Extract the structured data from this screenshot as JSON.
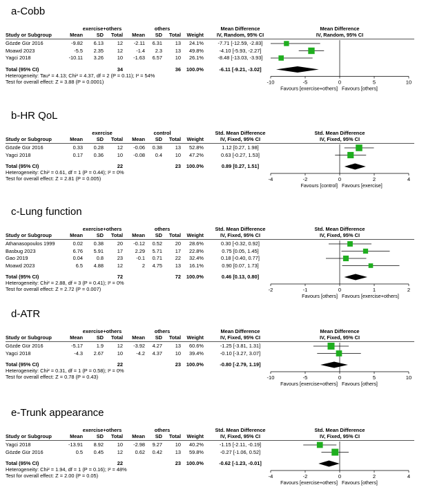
{
  "chart_data": [
    {
      "type": "forest",
      "title": "a-Cobb",
      "group1": "exercise+others",
      "group2": "others",
      "headers": {
        "study": "Study or Subgroup",
        "mean1": "Mean",
        "sd1": "SD",
        "total1": "Total",
        "mean2": "Mean",
        "sd2": "SD",
        "total2": "Total",
        "weight": "Weight",
        "effect_title": "Mean Difference",
        "effect_method": "IV, Random, 95% CI",
        "plot_title": "Mean Difference",
        "plot_method": "IV, Random, 95% CI"
      },
      "studies": [
        {
          "name": "Gözde Gür 2016",
          "mean1": "-9.82",
          "sd1": "6.13",
          "n1": "12",
          "mean2": "-2.11",
          "sd2": "6.31",
          "n2": "13",
          "weight": "24.1%",
          "ci_text": "-7.71 [-12.59, -2.83]",
          "est": -7.71,
          "lo": -12.59,
          "hi": -2.83,
          "w": 24.1
        },
        {
          "name": "Moawd 2023",
          "mean1": "-5.5",
          "sd1": "2.35",
          "n1": "12",
          "mean2": "-1.4",
          "sd2": "2.3",
          "n2": "13",
          "weight": "49.8%",
          "ci_text": "-4.10 [-5.93, -2.27]",
          "est": -4.1,
          "lo": -5.93,
          "hi": -2.27,
          "w": 49.8
        },
        {
          "name": "Yagci 2018",
          "mean1": "-10.11",
          "sd1": "3.26",
          "n1": "10",
          "mean2": "-1.63",
          "sd2": "6.57",
          "n2": "10",
          "weight": "26.1%",
          "ci_text": "-8.48 [-13.03, -3.93]",
          "est": -8.48,
          "lo": -13.03,
          "hi": -3.93,
          "w": 26.1
        }
      ],
      "total": {
        "label": "Total (95% CI)",
        "n1": "34",
        "n2": "36",
        "weight": "100.0%",
        "ci_text": "-6.11 [-9.21, -3.02]",
        "est": -6.11,
        "lo": -9.21,
        "hi": -3.02
      },
      "heterogeneity": "Heterogeneity: Tau² = 4.13; Chi² = 4.37, df = 2 (P = 0.11); I² = 54%",
      "overall": "Test for overall effect: Z = 3.88 (P = 0.0001)",
      "axis": {
        "min": -10,
        "max": 10,
        "ticks": [
          -10,
          -5,
          0,
          5,
          10
        ],
        "tick_labels": [
          "-10",
          "-5",
          "0",
          "5",
          "10"
        ]
      },
      "favours_left": "Favours [exercise+others]",
      "favours_right": "Favours [others]"
    },
    {
      "type": "forest",
      "title": "b-HR QoL",
      "group1": "exercise",
      "group2": "control",
      "headers": {
        "study": "Study or Subgroup",
        "mean1": "Mean",
        "sd1": "SD",
        "total1": "Total",
        "mean2": "Mean",
        "sd2": "SD",
        "total2": "Total",
        "weight": "Weight",
        "effect_title": "Std. Mean Difference",
        "effect_method": "IV, Fixed, 95% CI",
        "plot_title": "Std. Mean Difference",
        "plot_method": "IV, Fixed, 95% CI"
      },
      "studies": [
        {
          "name": "Gözde Gür 2016",
          "mean1": "0.33",
          "sd1": "0.28",
          "n1": "12",
          "mean2": "-0.06",
          "sd2": "0.38",
          "n2": "13",
          "weight": "52.8%",
          "ci_text": "1.12 [0.27, 1.98]",
          "est": 1.12,
          "lo": 0.27,
          "hi": 1.98,
          "w": 52.8
        },
        {
          "name": "Yagci 2018",
          "mean1": "0.17",
          "sd1": "0.36",
          "n1": "10",
          "mean2": "-0.08",
          "sd2": "0.4",
          "n2": "10",
          "weight": "47.2%",
          "ci_text": "0.63 [-0.27, 1.53]",
          "est": 0.63,
          "lo": -0.27,
          "hi": 1.53,
          "w": 47.2
        }
      ],
      "total": {
        "label": "Total (95% CI)",
        "n1": "22",
        "n2": "23",
        "weight": "100.0%",
        "ci_text": "0.89 [0.27, 1.51]",
        "est": 0.89,
        "lo": 0.27,
        "hi": 1.51
      },
      "heterogeneity": "Heterogeneity: Chi² = 0.61, df = 1 (P = 0.44); I² = 0%",
      "overall": "Test for overall effect: Z = 2.81 (P = 0.005)",
      "axis": {
        "min": -4,
        "max": 4,
        "ticks": [
          -4,
          -2,
          0,
          2,
          4
        ],
        "tick_labels": [
          "-4",
          "-2",
          "0",
          "2",
          "4"
        ]
      },
      "favours_left": "Favours [control]",
      "favours_right": "Favours [exercise]"
    },
    {
      "type": "forest",
      "title": "c-Lung function",
      "group1": "exercise+others",
      "group2": "others",
      "headers": {
        "study": "Study or Subgroup",
        "mean1": "Mean",
        "sd1": "SD",
        "total1": "Total",
        "mean2": "Mean",
        "sd2": "SD",
        "total2": "Total",
        "weight": "Weight",
        "effect_title": "Std. Mean Difference",
        "effect_method": "IV, Fixed, 95% CI",
        "plot_title": "Std. Mean Difference",
        "plot_method": "IV, Fixed, 95% CI"
      },
      "studies": [
        {
          "name": "Athanasopoulos 1999",
          "mean1": "0.02",
          "sd1": "0.38",
          "n1": "20",
          "mean2": "-0.12",
          "sd2": "0.52",
          "n2": "20",
          "weight": "28.6%",
          "ci_text": "0.30 [-0.32, 0.92]",
          "est": 0.3,
          "lo": -0.32,
          "hi": 0.92,
          "w": 28.6
        },
        {
          "name": "Basbug 2023",
          "mean1": "6.76",
          "sd1": "5.91",
          "n1": "17",
          "mean2": "2.29",
          "sd2": "5.71",
          "n2": "17",
          "weight": "22.8%",
          "ci_text": "0.75 [0.05, 1.45]",
          "est": 0.75,
          "lo": 0.05,
          "hi": 1.45,
          "w": 22.8
        },
        {
          "name": "Gao 2019",
          "mean1": "0.04",
          "sd1": "0.8",
          "n1": "23",
          "mean2": "-0.1",
          "sd2": "0.71",
          "n2": "22",
          "weight": "32.4%",
          "ci_text": "0.18 [-0.40, 0.77]",
          "est": 0.18,
          "lo": -0.4,
          "hi": 0.77,
          "w": 32.4
        },
        {
          "name": "Moawd 2023",
          "mean1": "6.5",
          "sd1": "4.88",
          "n1": "12",
          "mean2": "2",
          "sd2": "4.75",
          "n2": "13",
          "weight": "16.1%",
          "ci_text": "0.90 [0.07, 1.73]",
          "est": 0.9,
          "lo": 0.07,
          "hi": 1.73,
          "w": 16.1
        }
      ],
      "total": {
        "label": "Total (95% CI)",
        "n1": "72",
        "n2": "72",
        "weight": "100.0%",
        "ci_text": "0.46 [0.13, 0.80]",
        "est": 0.46,
        "lo": 0.13,
        "hi": 0.8
      },
      "heterogeneity": "Heterogeneity: Chi² = 2.88, df = 3 (P = 0.41); I² = 0%",
      "overall": "Test for overall effect: Z = 2.72 (P = 0.007)",
      "axis": {
        "min": -2,
        "max": 2,
        "ticks": [
          -2,
          -1,
          0,
          1,
          2
        ],
        "tick_labels": [
          "-2",
          "-1",
          "0",
          "1",
          "2"
        ]
      },
      "favours_left": "Favours [others]",
      "favours_right": "Favours [exercise+others]"
    },
    {
      "type": "forest",
      "title": "d-ATR",
      "group1": "exercise+others",
      "group2": "others",
      "headers": {
        "study": "Study or Subgroup",
        "mean1": "Mean",
        "sd1": "SD",
        "total1": "Total",
        "mean2": "Mean",
        "sd2": "SD",
        "total2": "Total",
        "weight": "Weight",
        "effect_title": "Mean Difference",
        "effect_method": "IV, Fixed, 95% CI",
        "plot_title": "Mean Difference",
        "plot_method": "IV, Fixed, 95% CI"
      },
      "studies": [
        {
          "name": "Gözde Gür 2016",
          "mean1": "-5.17",
          "sd1": "1.9",
          "n1": "12",
          "mean2": "-3.92",
          "sd2": "4.27",
          "n2": "13",
          "weight": "60.6%",
          "ci_text": "-1.25 [-3.81, 1.31]",
          "est": -1.25,
          "lo": -3.81,
          "hi": 1.31,
          "w": 60.6
        },
        {
          "name": "Yagci 2018",
          "mean1": "-4.3",
          "sd1": "2.67",
          "n1": "10",
          "mean2": "-4.2",
          "sd2": "4.37",
          "n2": "10",
          "weight": "39.4%",
          "ci_text": "-0.10 [-3.27, 3.07]",
          "est": -0.1,
          "lo": -3.27,
          "hi": 3.07,
          "w": 39.4
        }
      ],
      "total": {
        "label": "Total (95% CI)",
        "n1": "22",
        "n2": "23",
        "weight": "100.0%",
        "ci_text": "-0.80 [-2.79, 1.19]",
        "est": -0.8,
        "lo": -2.79,
        "hi": 1.19
      },
      "heterogeneity": "Heterogeneity: Chi² = 0.31, df = 1 (P = 0.58); I² = 0%",
      "overall": "Test for overall effect: Z = 0.78 (P = 0.43)",
      "axis": {
        "min": -10,
        "max": 10,
        "ticks": [
          -10,
          -5,
          0,
          5,
          10
        ],
        "tick_labels": [
          "-10",
          "-5",
          "0",
          "5",
          "10"
        ]
      },
      "favours_left": "Favours [exercise+others]",
      "favours_right": "Favours [others]"
    },
    {
      "type": "forest",
      "title": "e-Trunk appearance",
      "group1": "exercise+others",
      "group2": "others",
      "headers": {
        "study": "Study or Subgroup",
        "mean1": "Mean",
        "sd1": "SD",
        "total1": "Total",
        "mean2": "Mean",
        "sd2": "SD",
        "total2": "Total",
        "weight": "Weight",
        "effect_title": "Std. Mean Difference",
        "effect_method": "IV, Fixed, 95% CI",
        "plot_title": "Std. Mean Difference",
        "plot_method": "IV, Fixed, 95% CI"
      },
      "studies": [
        {
          "name": "Yagci 2018",
          "mean1": "-13.91",
          "sd1": "8.92",
          "n1": "10",
          "mean2": "-2.98",
          "sd2": "9.27",
          "n2": "10",
          "weight": "40.2%",
          "ci_text": "-1.15 [-2.11, -0.19]",
          "est": -1.15,
          "lo": -2.11,
          "hi": -0.19,
          "w": 40.2
        },
        {
          "name": "Gözde Gür 2016",
          "mean1": "0.5",
          "sd1": "0.45",
          "n1": "12",
          "mean2": "0.62",
          "sd2": "0.42",
          "n2": "13",
          "weight": "59.8%",
          "ci_text": "-0.27 [-1.06, 0.52]",
          "est": -0.27,
          "lo": -1.06,
          "hi": 0.52,
          "w": 59.8
        }
      ],
      "total": {
        "label": "Total (95% CI)",
        "n1": "22",
        "n2": "23",
        "weight": "100.0%",
        "ci_text": "-0.62 [-1.23, -0.01]",
        "est": -0.62,
        "lo": -1.23,
        "hi": -0.01
      },
      "heterogeneity": "Heterogeneity: Chi² = 1.94, df = 1 (P = 0.16); I² = 48%",
      "overall": "Test for overall effect: Z = 2.00 (P = 0.05)",
      "axis": {
        "min": -4,
        "max": 4,
        "ticks": [
          -4,
          -2,
          0,
          2,
          4
        ],
        "tick_labels": [
          "-4",
          "-2",
          "0",
          "2",
          "4"
        ]
      },
      "favours_left": "Favours [exercise+others]",
      "favours_right": "Favours [others]"
    }
  ],
  "colors": {
    "marker": "#1fae1f",
    "diamond": "#000000",
    "line": "#000000"
  }
}
